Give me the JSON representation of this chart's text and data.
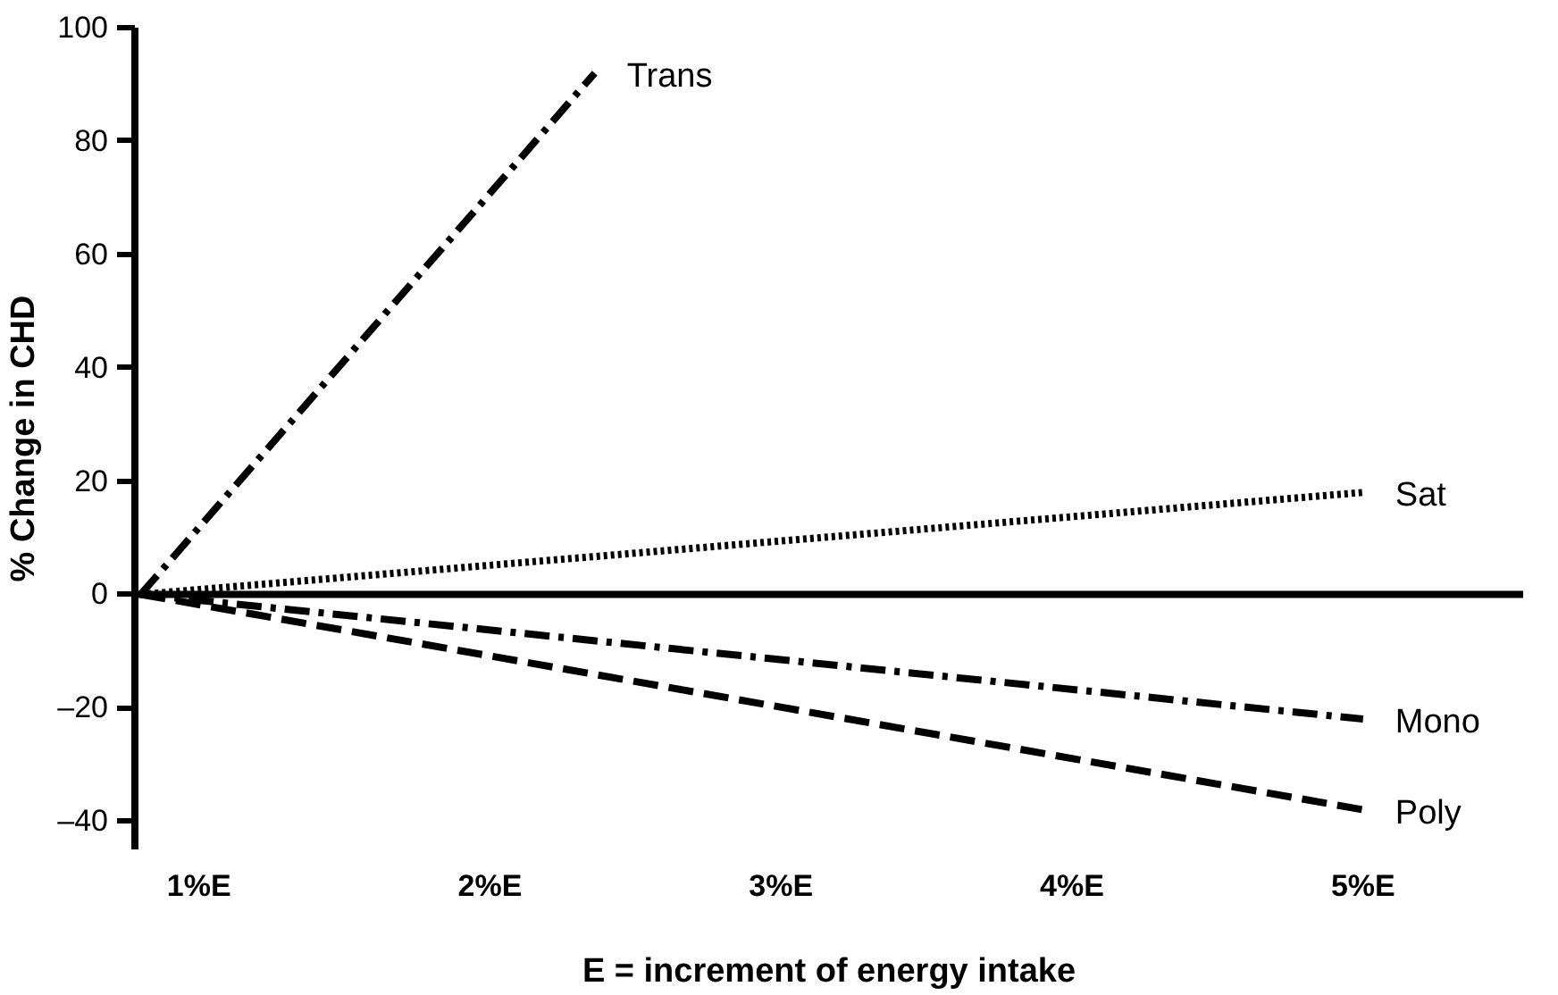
{
  "chart_data": {
    "type": "line",
    "xlabel": "E = increment of energy intake",
    "ylabel": "% Change in CHD",
    "xlim": [
      0.78,
      5.55
    ],
    "ylim": [
      -45,
      100
    ],
    "xticks": [
      {
        "value": 1,
        "label": "1%E"
      },
      {
        "value": 2,
        "label": "2%E"
      },
      {
        "value": 3,
        "label": "3%E"
      },
      {
        "value": 4,
        "label": "4%E"
      },
      {
        "value": 5,
        "label": "5%E"
      }
    ],
    "yticks": [
      {
        "value": -40,
        "label": "–40"
      },
      {
        "value": -20,
        "label": "–20"
      },
      0,
      20,
      40,
      60,
      80,
      100
    ],
    "grid": false,
    "ref_lines": [
      {
        "axis": "y",
        "value": 0,
        "color": "#000000",
        "line_style": "solid"
      }
    ],
    "series": [
      {
        "name": "Trans",
        "color": "#000000",
        "line_style": "dashdot",
        "x": [
          0.8,
          2.36
        ],
        "values": [
          0,
          92
        ]
      },
      {
        "name": "Sat",
        "color": "#000000",
        "line_style": "dotted",
        "x": [
          0.8,
          5.0
        ],
        "values": [
          0,
          18
        ]
      },
      {
        "name": "Mono",
        "color": "#000000",
        "line_style": "dashdot",
        "x": [
          0.8,
          5.0
        ],
        "values": [
          0,
          -22
        ]
      },
      {
        "name": "Poly",
        "color": "#000000",
        "line_style": "dashed",
        "x": [
          0.8,
          5.0
        ],
        "values": [
          0,
          -38
        ]
      }
    ]
  }
}
